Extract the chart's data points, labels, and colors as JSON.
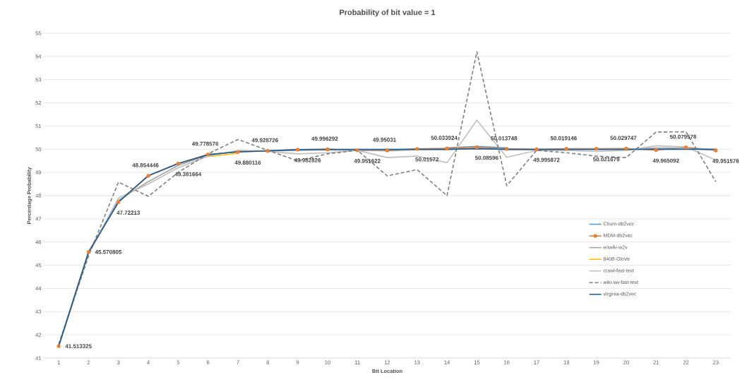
{
  "chart_data": {
    "type": "line",
    "title": "Probability of bit value = 1",
    "xlabel": "Bit Location",
    "ylabel": "Percentage Probability",
    "categories": [
      "1",
      "2",
      "3",
      "4",
      "5",
      "6",
      "7",
      "8",
      "9",
      "10",
      "11",
      "12",
      "13",
      "14",
      "15",
      "16",
      "17",
      "18",
      "19",
      "20",
      "21",
      "22",
      "23"
    ],
    "ylim": [
      41,
      55
    ],
    "yticks": [
      41,
      42,
      43,
      44,
      45,
      46,
      47,
      48,
      49,
      50,
      51,
      52,
      53,
      54,
      55
    ],
    "grid": "y",
    "legend": "right",
    "series": [
      {
        "name": "Churn-db2vec",
        "color": "#5b9bd5",
        "line_style": "solid",
        "marker": "none",
        "values": [
          null,
          null,
          null,
          null,
          null,
          null,
          null,
          null,
          null,
          null,
          null,
          null,
          null,
          50.06,
          50.12,
          50.06,
          null,
          null,
          null,
          null,
          null,
          null,
          null
        ]
      },
      {
        "name": "MDM-db2vec",
        "color": "#ed7d31",
        "line_style": "solid",
        "marker": "circle",
        "values": [
          41.513325,
          45.570805,
          47.72213,
          48.854446,
          49.381664,
          49.778576,
          49.880116,
          49.928726,
          49.982826,
          49.996292,
          49.951622,
          49.95031,
          50.01572,
          50.033924,
          50.08596,
          50.013748,
          49.995872,
          50.019146,
          50.021679,
          50.029747,
          49.965092,
          50.079578,
          49.951576
        ],
        "value_labels": [
          "41.513325",
          "45.570805",
          "47.72213",
          "48.854446",
          "49.381664",
          "49.778576",
          "49.880116",
          "49.928726",
          "49.982826",
          "49.996292",
          "49.951622",
          "49.95031",
          "50.01572",
          "50.033924",
          "50.08596",
          "50.013748",
          "49.995872",
          "50.019146",
          "50.021679",
          "50.029747",
          "49.965092",
          "50.079578",
          "49.951576"
        ]
      },
      {
        "name": "enwiki-w2v",
        "color": "#a5a5a5",
        "line_style": "solid",
        "marker": "none",
        "values": [
          41.5,
          45.5,
          47.8,
          48.6,
          49.3,
          49.75,
          49.9,
          49.92,
          49.95,
          49.97,
          49.96,
          49.93,
          49.98,
          49.98,
          50.05,
          49.98,
          49.98,
          50.0,
          50.0,
          50.0,
          50.05,
          50.05,
          49.95
        ]
      },
      {
        "name": "840B-GloVe",
        "color": "#ffc000",
        "line_style": "solid",
        "marker": "none",
        "values": [
          null,
          null,
          null,
          null,
          null,
          49.68,
          49.82,
          null,
          null,
          null,
          null,
          null,
          null,
          null,
          null,
          null,
          null,
          null,
          null,
          null,
          null,
          null,
          null
        ]
      },
      {
        "name": "crawl-fast-text",
        "color": "#bfbfbf",
        "line_style": "solid",
        "marker": "none",
        "values": [
          41.5,
          45.5,
          47.9,
          48.5,
          49.2,
          49.7,
          49.95,
          49.9,
          49.8,
          49.85,
          49.95,
          49.64,
          49.7,
          49.42,
          51.25,
          49.65,
          49.95,
          49.95,
          49.9,
          49.95,
          50.15,
          50.1,
          49.53
        ]
      },
      {
        "name": "wiki-sw-fast-text",
        "color": "#7f7f7f",
        "line_style": "dashed",
        "marker": "none",
        "values": [
          41.6,
          45.4,
          48.58,
          47.97,
          49.0,
          49.8,
          50.42,
          49.95,
          49.5,
          49.8,
          49.95,
          48.85,
          49.12,
          48.0,
          54.2,
          48.43,
          49.95,
          49.85,
          49.7,
          49.64,
          50.74,
          50.75,
          48.6
        ]
      },
      {
        "name": "virginia-db2vec",
        "color": "#255e91",
        "line_style": "solid",
        "marker": "none",
        "values": [
          41.52,
          45.57,
          47.72,
          48.86,
          49.38,
          49.76,
          49.89,
          49.93,
          49.98,
          49.99,
          49.99,
          49.99,
          50.0,
          50.0,
          50.02,
          50.0,
          49.99,
          49.99,
          49.99,
          49.99,
          50.0,
          50.0,
          50.0
        ]
      }
    ]
  }
}
